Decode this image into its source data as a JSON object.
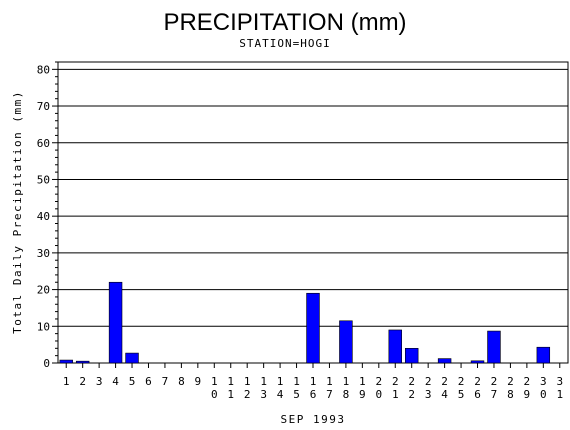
{
  "chart_data": {
    "type": "bar",
    "title": "PRECIPITATION (mm)",
    "subtitle": "STATION=HOGI",
    "xlabel": "SEP 1993",
    "ylabel": "Total Daily Precipitation (mm)",
    "ylim": [
      0,
      82
    ],
    "yticks": [
      0,
      10,
      20,
      30,
      40,
      50,
      60,
      70,
      80
    ],
    "grid": true,
    "bar_color": "#0000ff",
    "categories": [
      "1",
      "2",
      "3",
      "4",
      "5",
      "6",
      "7",
      "8",
      "9",
      "10",
      "11",
      "12",
      "13",
      "14",
      "15",
      "16",
      "17",
      "18",
      "19",
      "20",
      "21",
      "22",
      "23",
      "24",
      "25",
      "26",
      "27",
      "28",
      "29",
      "30",
      "31"
    ],
    "values": [
      0.8,
      0.5,
      0,
      22,
      2.7,
      0,
      0,
      0,
      0,
      0,
      0,
      0,
      0,
      0,
      0,
      19,
      0,
      11.5,
      0,
      0,
      9,
      4,
      0,
      1.2,
      0,
      0.6,
      8.7,
      0,
      0,
      4.3,
      0
    ]
  }
}
